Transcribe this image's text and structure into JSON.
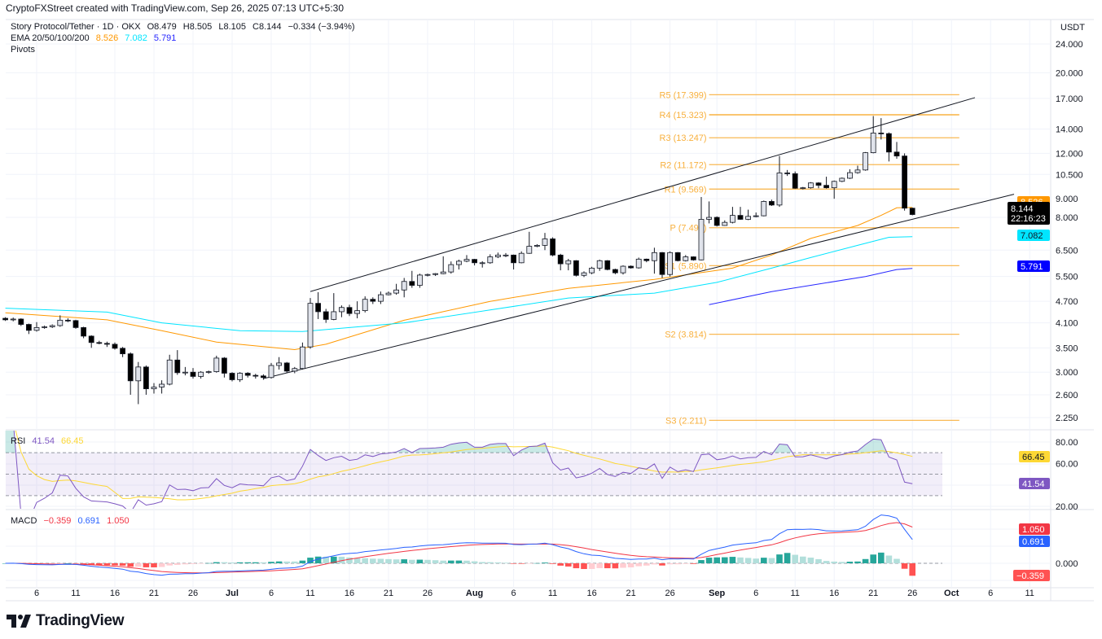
{
  "header": {
    "attribution": "CryptoFXStreet created with TradingView.com, Sep 26, 2025 07:13 UTC+5:30"
  },
  "legend": {
    "symbol": "Story Protocol/Tether · 1D · OKX",
    "open": "O8.479",
    "high": "H8.505",
    "low": "L8.105",
    "close": "C8.144",
    "change": "−0.334 (−3.94%)",
    "ema_label": "EMA 20/50/100/200",
    "ema_values": [
      "8.526",
      "7.082",
      "5.791"
    ],
    "pivots_label": "Pivots",
    "rsi_label": "RSI",
    "rsi_value": "41.54",
    "rsi_ma_value": "66.45",
    "macd_label": "MACD",
    "macd_hist": "−0.359",
    "macd_line": "0.691",
    "macd_signal": "1.050"
  },
  "axis": {
    "unit": "USDT"
  },
  "price_labels": {
    "ema_fast": "8.526",
    "last_price": "8.144",
    "countdown": "22:16:23",
    "ema_mid": "7.082",
    "ema_slow": "5.791"
  },
  "rsi_axis": {
    "ticks": [
      "80.00",
      "60.00",
      "20.00"
    ],
    "ma_badge": "66.45",
    "rsi_badge": "41.54"
  },
  "macd_axis": {
    "zero": "0.000",
    "signal_badge": "1.050",
    "macd_badge": "0.691",
    "hist_badge": "−0.359"
  },
  "colors": {
    "ema_fast": "#ff9800",
    "ema_mid": "#00e5ff",
    "ema_slow": "#2828ff",
    "pivot": "#f7a21b",
    "rsi": "#7e57c2",
    "rsi_ma": "#fdd835",
    "macd": "#2962ff",
    "signal": "#f23645",
    "up": "#e0e3eb",
    "down": "#000000"
  },
  "logo": {
    "text": "TradingView"
  },
  "chart_data": {
    "type": "candlestick",
    "scale": "log",
    "grid": true,
    "price_ticks": [
      24,
      20,
      17,
      14,
      12,
      10.5,
      9,
      8,
      6.5,
      5.5,
      4.7,
      4.1,
      3.5,
      3,
      2.6,
      2.25
    ],
    "price_tick_labels": [
      "24.000",
      "20.000",
      "17.000",
      "14.000",
      "12.000",
      "10.500",
      "9.000",
      "8.000",
      "6.500",
      "5.500",
      "4.700",
      "4.100",
      "3.500",
      "3.000",
      "2.600",
      "2.250"
    ],
    "x_ticks": [
      {
        "label": "6",
        "date": "2025-06-06"
      },
      {
        "label": "11",
        "date": "2025-06-11"
      },
      {
        "label": "16",
        "date": "2025-06-16"
      },
      {
        "label": "21",
        "date": "2025-06-21"
      },
      {
        "label": "26",
        "date": "2025-06-26"
      },
      {
        "label": "Jul",
        "date": "2025-07-01",
        "month": true
      },
      {
        "label": "6",
        "date": "2025-07-06"
      },
      {
        "label": "11",
        "date": "2025-07-11"
      },
      {
        "label": "16",
        "date": "2025-07-16"
      },
      {
        "label": "21",
        "date": "2025-07-21"
      },
      {
        "label": "26",
        "date": "2025-07-26"
      },
      {
        "label": "Aug",
        "date": "2025-08-01",
        "month": true
      },
      {
        "label": "6",
        "date": "2025-08-06"
      },
      {
        "label": "11",
        "date": "2025-08-11"
      },
      {
        "label": "16",
        "date": "2025-08-16"
      },
      {
        "label": "21",
        "date": "2025-08-21"
      },
      {
        "label": "26",
        "date": "2025-08-26"
      },
      {
        "label": "Sep",
        "date": "2025-09-01",
        "month": true
      },
      {
        "label": "6",
        "date": "2025-09-06"
      },
      {
        "label": "11",
        "date": "2025-09-11"
      },
      {
        "label": "16",
        "date": "2025-09-16"
      },
      {
        "label": "21",
        "date": "2025-09-21"
      },
      {
        "label": "26",
        "date": "2025-09-26"
      },
      {
        "label": "Oct",
        "date": "2025-10-01",
        "month": true
      },
      {
        "label": "6",
        "date": "2025-10-06"
      },
      {
        "label": "11",
        "date": "2025-10-11"
      }
    ],
    "candles": [
      [
        "2025-06-02",
        4.22,
        4.25,
        4.15,
        4.18
      ],
      [
        "2025-06-03",
        4.18,
        4.24,
        4.14,
        4.2
      ],
      [
        "2025-06-04",
        4.2,
        4.22,
        4.02,
        4.06
      ],
      [
        "2025-06-05",
        4.06,
        4.08,
        3.82,
        3.91
      ],
      [
        "2025-06-06",
        3.91,
        4.12,
        3.88,
        3.98
      ],
      [
        "2025-06-07",
        3.98,
        4.03,
        3.95,
        4.0
      ],
      [
        "2025-06-08",
        4.0,
        4.06,
        3.97,
        4.03
      ],
      [
        "2025-06-09",
        4.03,
        4.3,
        4.0,
        4.17
      ],
      [
        "2025-06-10",
        4.17,
        4.22,
        4.12,
        4.16
      ],
      [
        "2025-06-11",
        4.16,
        4.18,
        3.95,
        3.98
      ],
      [
        "2025-06-12",
        3.98,
        4.0,
        3.72,
        3.77
      ],
      [
        "2025-06-13",
        3.77,
        3.79,
        3.5,
        3.62
      ],
      [
        "2025-06-14",
        3.62,
        3.66,
        3.58,
        3.6
      ],
      [
        "2025-06-15",
        3.6,
        3.64,
        3.52,
        3.58
      ],
      [
        "2025-06-16",
        3.58,
        3.62,
        3.46,
        3.49
      ],
      [
        "2025-06-17",
        3.49,
        3.52,
        3.3,
        3.37
      ],
      [
        "2025-06-18",
        3.37,
        3.4,
        2.6,
        2.84
      ],
      [
        "2025-06-19",
        2.84,
        3.2,
        2.45,
        3.1
      ],
      [
        "2025-06-20",
        3.1,
        3.13,
        2.6,
        2.7
      ],
      [
        "2025-06-21",
        2.7,
        2.8,
        2.62,
        2.73
      ],
      [
        "2025-06-22",
        2.73,
        2.85,
        2.62,
        2.78
      ],
      [
        "2025-06-23",
        2.78,
        3.35,
        2.76,
        3.24
      ],
      [
        "2025-06-24",
        3.24,
        3.45,
        2.95,
        2.99
      ],
      [
        "2025-06-25",
        2.99,
        3.1,
        2.94,
        3.0
      ],
      [
        "2025-06-26",
        3.0,
        3.08,
        2.88,
        2.92
      ],
      [
        "2025-06-27",
        2.92,
        3.02,
        2.88,
        3.0
      ],
      [
        "2025-06-28",
        3.0,
        3.03,
        2.97,
        3.01
      ],
      [
        "2025-06-29",
        3.01,
        3.33,
        2.99,
        3.28
      ],
      [
        "2025-06-30",
        3.28,
        3.3,
        2.9,
        2.98
      ],
      [
        "2025-07-01",
        2.98,
        3.0,
        2.83,
        2.86
      ],
      [
        "2025-07-02",
        2.86,
        3.0,
        2.82,
        2.98
      ],
      [
        "2025-07-03",
        2.98,
        3.0,
        2.9,
        2.94
      ],
      [
        "2025-07-04",
        2.94,
        2.97,
        2.88,
        2.93
      ],
      [
        "2025-07-05",
        2.93,
        2.96,
        2.86,
        2.9
      ],
      [
        "2025-07-06",
        2.9,
        3.18,
        2.88,
        3.13
      ],
      [
        "2025-07-07",
        3.13,
        3.3,
        3.05,
        3.18
      ],
      [
        "2025-07-08",
        3.18,
        3.2,
        2.99,
        3.02
      ],
      [
        "2025-07-09",
        3.02,
        3.1,
        2.98,
        3.07
      ],
      [
        "2025-07-10",
        3.07,
        3.62,
        3.05,
        3.52
      ],
      [
        "2025-07-11",
        3.52,
        4.8,
        3.48,
        4.64
      ],
      [
        "2025-07-12",
        4.64,
        4.98,
        4.2,
        4.4
      ],
      [
        "2025-07-13",
        4.4,
        4.48,
        4.1,
        4.19
      ],
      [
        "2025-07-14",
        4.19,
        4.95,
        4.17,
        4.4
      ],
      [
        "2025-07-15",
        4.4,
        4.58,
        4.25,
        4.52
      ],
      [
        "2025-07-16",
        4.52,
        4.6,
        4.28,
        4.35
      ],
      [
        "2025-07-17",
        4.35,
        4.7,
        4.22,
        4.43
      ],
      [
        "2025-07-18",
        4.43,
        4.85,
        4.38,
        4.76
      ],
      [
        "2025-07-19",
        4.76,
        4.82,
        4.62,
        4.7
      ],
      [
        "2025-07-20",
        4.7,
        5.0,
        4.62,
        4.9
      ],
      [
        "2025-07-21",
        4.9,
        5.0,
        4.88,
        4.95
      ],
      [
        "2025-07-22",
        4.95,
        5.25,
        4.9,
        5.05
      ],
      [
        "2025-07-23",
        5.05,
        5.45,
        4.82,
        5.33
      ],
      [
        "2025-07-24",
        5.33,
        5.7,
        5.12,
        5.2
      ],
      [
        "2025-07-25",
        5.2,
        5.6,
        5.12,
        5.55
      ],
      [
        "2025-07-26",
        5.55,
        5.6,
        5.5,
        5.57
      ],
      [
        "2025-07-27",
        5.57,
        5.62,
        5.52,
        5.6
      ],
      [
        "2025-07-28",
        5.6,
        6.25,
        5.58,
        5.66
      ],
      [
        "2025-07-29",
        5.66,
        6.05,
        5.6,
        5.93
      ],
      [
        "2025-07-30",
        5.93,
        6.12,
        5.75,
        6.06
      ],
      [
        "2025-07-31",
        6.06,
        6.3,
        6.02,
        6.13
      ],
      [
        "2025-08-01",
        6.13,
        6.15,
        5.9,
        6.0
      ],
      [
        "2025-08-02",
        6.0,
        6.06,
        5.82,
        6.0
      ],
      [
        "2025-08-03",
        6.0,
        6.33,
        5.96,
        6.23
      ],
      [
        "2025-08-04",
        6.23,
        6.4,
        6.18,
        6.3
      ],
      [
        "2025-08-05",
        6.3,
        6.38,
        6.22,
        6.3
      ],
      [
        "2025-08-06",
        6.3,
        6.32,
        5.75,
        6.0
      ],
      [
        "2025-08-07",
        6.0,
        6.45,
        5.98,
        6.37
      ],
      [
        "2025-08-08",
        6.37,
        7.3,
        6.35,
        6.66
      ],
      [
        "2025-08-09",
        6.66,
        6.75,
        6.62,
        6.7
      ],
      [
        "2025-08-10",
        6.7,
        7.25,
        6.5,
        6.98
      ],
      [
        "2025-08-11",
        6.98,
        7.05,
        6.25,
        6.3
      ],
      [
        "2025-08-12",
        6.3,
        6.35,
        5.72,
        5.96
      ],
      [
        "2025-08-13",
        5.96,
        6.15,
        5.72,
        6.08
      ],
      [
        "2025-08-14",
        6.08,
        6.1,
        5.5,
        5.54
      ],
      [
        "2025-08-15",
        5.54,
        5.68,
        5.48,
        5.63
      ],
      [
        "2025-08-16",
        5.63,
        5.85,
        5.58,
        5.8
      ],
      [
        "2025-08-17",
        5.8,
        6.12,
        5.7,
        6.08
      ],
      [
        "2025-08-18",
        6.08,
        6.1,
        5.72,
        5.75
      ],
      [
        "2025-08-19",
        5.75,
        5.78,
        5.58,
        5.63
      ],
      [
        "2025-08-20",
        5.63,
        5.9,
        5.57,
        5.87
      ],
      [
        "2025-08-21",
        5.87,
        5.9,
        5.78,
        5.81
      ],
      [
        "2025-08-22",
        5.81,
        6.2,
        5.78,
        6.14
      ],
      [
        "2025-08-23",
        6.14,
        6.16,
        6.02,
        6.08
      ],
      [
        "2025-08-24",
        6.08,
        6.6,
        5.6,
        6.4
      ],
      [
        "2025-08-25",
        6.4,
        6.42,
        5.45,
        5.57
      ],
      [
        "2025-08-26",
        5.57,
        6.45,
        5.5,
        6.4
      ],
      [
        "2025-08-27",
        6.4,
        6.42,
        6.05,
        6.08
      ],
      [
        "2025-08-28",
        6.08,
        6.3,
        6.05,
        6.23
      ],
      [
        "2025-08-29",
        6.23,
        6.25,
        6.08,
        6.11
      ],
      [
        "2025-08-30",
        6.11,
        9.1,
        6.09,
        7.9
      ],
      [
        "2025-08-31",
        7.9,
        8.85,
        7.7,
        8.0
      ],
      [
        "2025-09-01",
        8.0,
        8.05,
        7.55,
        7.6
      ],
      [
        "2025-09-02",
        7.6,
        7.85,
        7.58,
        7.75
      ],
      [
        "2025-09-03",
        7.75,
        8.55,
        7.7,
        8.1
      ],
      [
        "2025-09-04",
        8.1,
        8.55,
        7.88,
        7.9
      ],
      [
        "2025-09-05",
        7.9,
        8.4,
        7.86,
        8.05
      ],
      [
        "2025-09-06",
        8.05,
        8.25,
        8.0,
        8.08
      ],
      [
        "2025-09-07",
        8.08,
        8.9,
        8.05,
        8.85
      ],
      [
        "2025-09-08",
        8.85,
        8.95,
        8.6,
        8.65
      ],
      [
        "2025-09-09",
        8.65,
        11.8,
        8.55,
        10.6
      ],
      [
        "2025-09-10",
        10.6,
        10.8,
        10.4,
        10.55
      ],
      [
        "2025-09-11",
        10.55,
        10.7,
        9.58,
        9.62
      ],
      [
        "2025-09-12",
        9.62,
        9.7,
        9.55,
        9.65
      ],
      [
        "2025-09-13",
        9.65,
        10.0,
        9.6,
        9.95
      ],
      [
        "2025-09-14",
        9.95,
        10.0,
        9.62,
        9.8
      ],
      [
        "2025-09-15",
        9.8,
        10.35,
        9.6,
        9.65
      ],
      [
        "2025-09-16",
        9.65,
        10.1,
        9.0,
        10.05
      ],
      [
        "2025-09-17",
        10.05,
        10.3,
        10.0,
        10.25
      ],
      [
        "2025-09-18",
        10.25,
        10.85,
        10.2,
        10.62
      ],
      [
        "2025-09-19",
        10.62,
        11.1,
        10.55,
        10.8
      ],
      [
        "2025-09-20",
        10.8,
        12.1,
        10.75,
        12.05
      ],
      [
        "2025-09-21",
        12.05,
        15.2,
        12.0,
        13.65
      ],
      [
        "2025-09-22",
        13.65,
        15.0,
        13.1,
        13.6
      ],
      [
        "2025-09-23",
        13.6,
        13.7,
        11.4,
        12.1
      ],
      [
        "2025-09-24",
        12.1,
        12.9,
        11.6,
        11.8
      ],
      [
        "2025-09-25",
        11.8,
        12.0,
        8.35,
        8.48
      ],
      [
        "2025-09-26",
        8.479,
        8.505,
        8.105,
        8.144
      ]
    ],
    "ema_series": [
      {
        "name": "EMA 20",
        "color_key": "ema_fast",
        "points": [
          [
            "2025-06-02",
            4.37
          ],
          [
            "2025-06-15",
            4.18
          ],
          [
            "2025-06-22",
            3.9
          ],
          [
            "2025-06-29",
            3.63
          ],
          [
            "2025-07-09",
            3.46
          ],
          [
            "2025-07-13",
            3.58
          ],
          [
            "2025-07-23",
            4.17
          ],
          [
            "2025-08-03",
            4.7
          ],
          [
            "2025-08-13",
            5.1
          ],
          [
            "2025-08-24",
            5.4
          ],
          [
            "2025-08-29",
            5.6
          ],
          [
            "2025-09-03",
            5.8
          ],
          [
            "2025-09-08",
            6.3
          ],
          [
            "2025-09-13",
            7.0
          ],
          [
            "2025-09-19",
            7.6
          ],
          [
            "2025-09-22",
            8.1
          ],
          [
            "2025-09-24",
            8.5
          ],
          [
            "2025-09-26",
            8.526
          ]
        ]
      },
      {
        "name": "EMA 50",
        "color_key": "ema_mid",
        "points": [
          [
            "2025-06-02",
            4.5
          ],
          [
            "2025-06-15",
            4.39
          ],
          [
            "2025-06-22",
            4.1
          ],
          [
            "2025-07-02",
            3.9
          ],
          [
            "2025-07-10",
            3.88
          ],
          [
            "2025-07-23",
            4.1
          ],
          [
            "2025-08-03",
            4.45
          ],
          [
            "2025-08-13",
            4.8
          ],
          [
            "2025-08-24",
            4.95
          ],
          [
            "2025-09-01",
            5.3
          ],
          [
            "2025-09-08",
            5.8
          ],
          [
            "2025-09-13",
            6.2
          ],
          [
            "2025-09-19",
            6.7
          ],
          [
            "2025-09-23",
            7.05
          ],
          [
            "2025-09-26",
            7.082
          ]
        ]
      },
      {
        "name": "EMA 100",
        "color_key": "ema_slow",
        "points": [
          [
            "2025-08-31",
            4.6
          ],
          [
            "2025-09-08",
            5.0
          ],
          [
            "2025-09-13",
            5.2
          ],
          [
            "2025-09-20",
            5.5
          ],
          [
            "2025-09-24",
            5.75
          ],
          [
            "2025-09-26",
            5.791
          ]
        ]
      }
    ],
    "channel": [
      {
        "from": [
          "2025-07-11",
          5.0
        ],
        "to": [
          "2025-10-04",
          17.08
        ]
      },
      {
        "from": [
          "2025-07-05",
          2.88
        ],
        "to": [
          "2025-10-09",
          9.26
        ]
      }
    ],
    "pivots": {
      "from": "2025-08-31",
      "to": "2025-10-02",
      "levels": [
        {
          "label": "R5 (17.399)",
          "value": 17.399
        },
        {
          "label": "R4 (15.323)",
          "value": 15.323
        },
        {
          "label": "R3 (13.247)",
          "value": 13.247
        },
        {
          "label": "R2 (11.172)",
          "value": 11.172
        },
        {
          "label": "R1 (9.569)",
          "value": 9.569
        },
        {
          "label": "P (7.493)",
          "value": 7.493
        },
        {
          "label": "S1 (5.890)",
          "value": 5.89
        },
        {
          "label": "S2 (3.814)",
          "value": 3.814
        },
        {
          "label": "S3 (2.211)",
          "value": 2.211
        }
      ]
    },
    "rsi": {
      "period": 14,
      "ma_period": 14,
      "levels": [
        70,
        50,
        30
      ],
      "range": [
        20,
        80
      ]
    },
    "macd": {
      "fast": 12,
      "slow": 26,
      "signal": 9
    }
  }
}
